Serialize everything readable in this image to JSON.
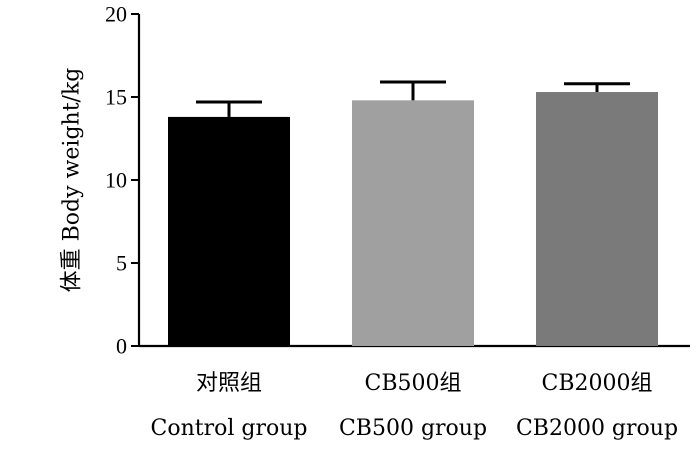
{
  "chart_data": {
    "type": "bar",
    "ylabel": "体重 Body weight/kg",
    "ylim": [
      0,
      20
    ],
    "yticks": [
      "0",
      "5",
      "10",
      "15",
      "20"
    ],
    "categories": [
      {
        "zh": "对照组",
        "en": "Control group"
      },
      {
        "zh": "CB500组",
        "en": "CB500 group"
      },
      {
        "zh": "CB2000组",
        "en": "CB2000 group"
      }
    ],
    "values": [
      13.8,
      14.8,
      15.3
    ],
    "error_upper": [
      0.9,
      1.1,
      0.5
    ],
    "colors": [
      "#000000",
      "#a0a0a0",
      "#7a7a7a"
    ],
    "error_bar_color": "#000000",
    "grid": false,
    "legend": "none"
  }
}
